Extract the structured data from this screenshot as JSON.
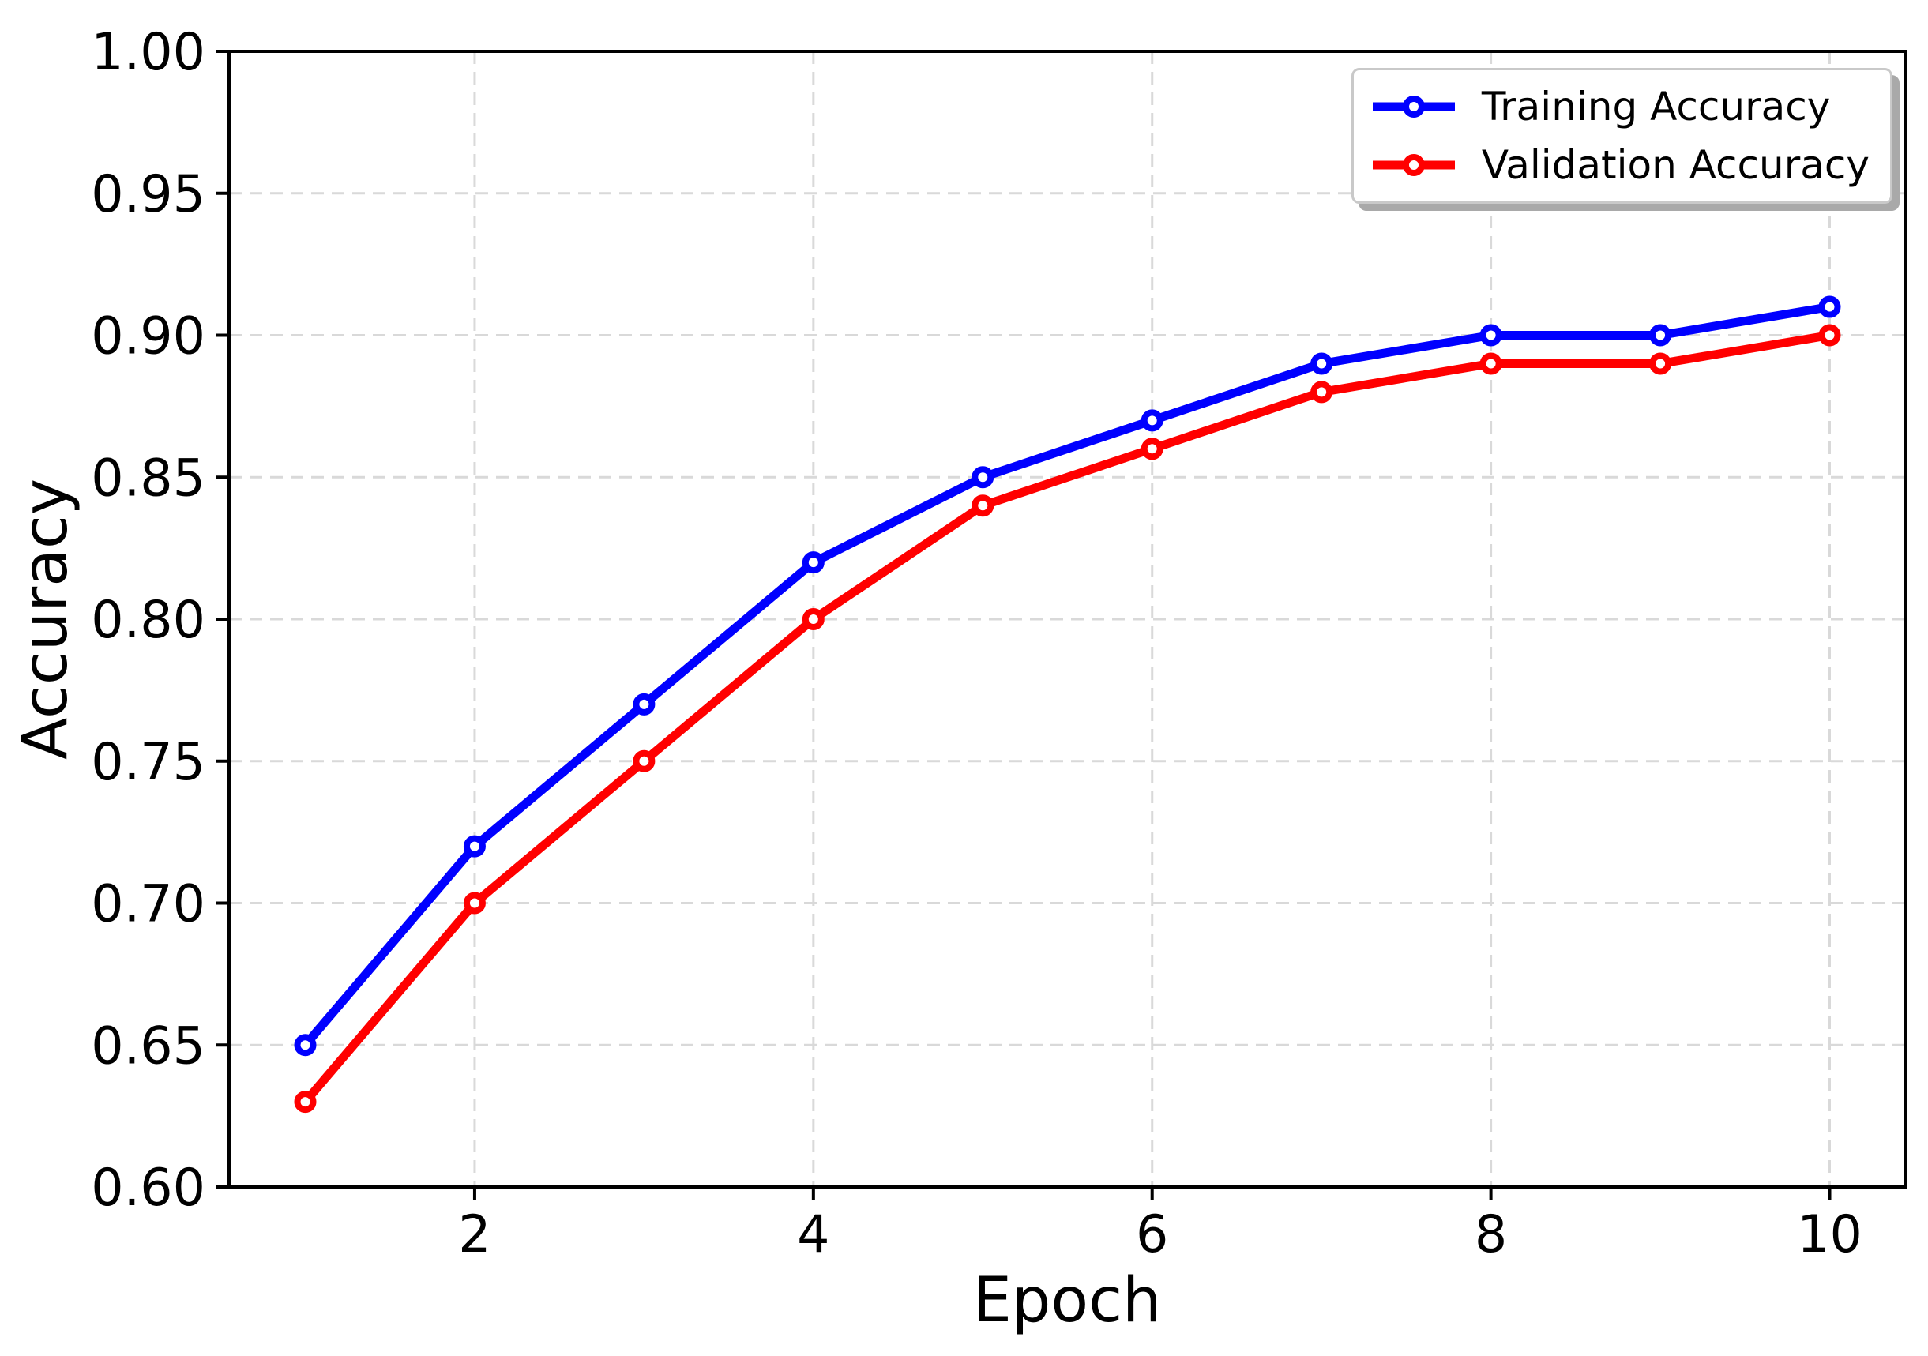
{
  "chart_data": {
    "type": "line",
    "title": "",
    "xlabel": "Epoch",
    "ylabel": "Accuracy",
    "x": [
      1,
      2,
      3,
      4,
      5,
      6,
      7,
      8,
      9,
      10
    ],
    "series": [
      {
        "name": "Training Accuracy",
        "color": "#0000ff",
        "marker": "circle-open",
        "values": [
          0.65,
          0.72,
          0.77,
          0.82,
          0.85,
          0.87,
          0.89,
          0.9,
          0.9,
          0.91
        ]
      },
      {
        "name": "Validation Accuracy",
        "color": "#ff0000",
        "marker": "circle-open",
        "values": [
          0.63,
          0.7,
          0.75,
          0.8,
          0.84,
          0.86,
          0.88,
          0.89,
          0.89,
          0.9
        ]
      }
    ],
    "xlim": [
      0.55,
      10.45
    ],
    "ylim": [
      0.6,
      1.0
    ],
    "xticks": [
      {
        "v": 2,
        "label": "2"
      },
      {
        "v": 4,
        "label": "4"
      },
      {
        "v": 6,
        "label": "6"
      },
      {
        "v": 8,
        "label": "8"
      },
      {
        "v": 10,
        "label": "10"
      }
    ],
    "yticks": [
      {
        "v": 0.6,
        "label": "0.60"
      },
      {
        "v": 0.65,
        "label": "0.65"
      },
      {
        "v": 0.7,
        "label": "0.70"
      },
      {
        "v": 0.75,
        "label": "0.75"
      },
      {
        "v": 0.8,
        "label": "0.80"
      },
      {
        "v": 0.85,
        "label": "0.85"
      },
      {
        "v": 0.9,
        "label": "0.90"
      },
      {
        "v": 0.95,
        "label": "0.95"
      },
      {
        "v": 1.0,
        "label": "1.00"
      }
    ],
    "grid": true,
    "grid_style": "dashed",
    "legend_position": "upper right"
  },
  "colors": {
    "background": "#ffffff",
    "spine": "#000000",
    "grid": "#d9d9d9",
    "tick": "#000000",
    "legend_border": "#c9c9c9",
    "legend_shadow": "#a9a9a9",
    "training_line": "#0000ff",
    "validation_line": "#ff0000"
  }
}
